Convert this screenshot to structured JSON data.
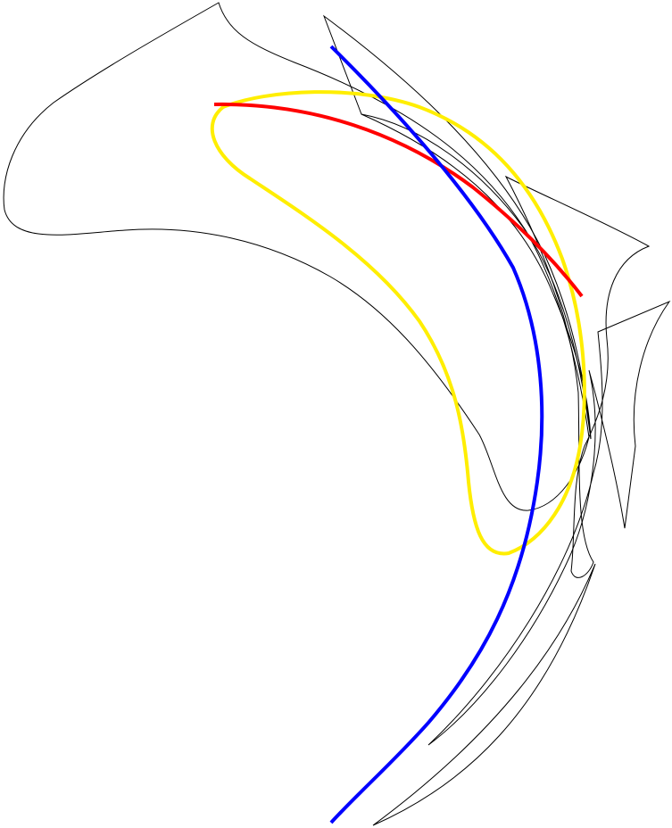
{
  "colors": {
    "background": "#ffffff",
    "outline": "#000000",
    "curve_blue": "#0000ff",
    "curve_red": "#ff0000",
    "curve_yellow": "#ffee00"
  }
}
